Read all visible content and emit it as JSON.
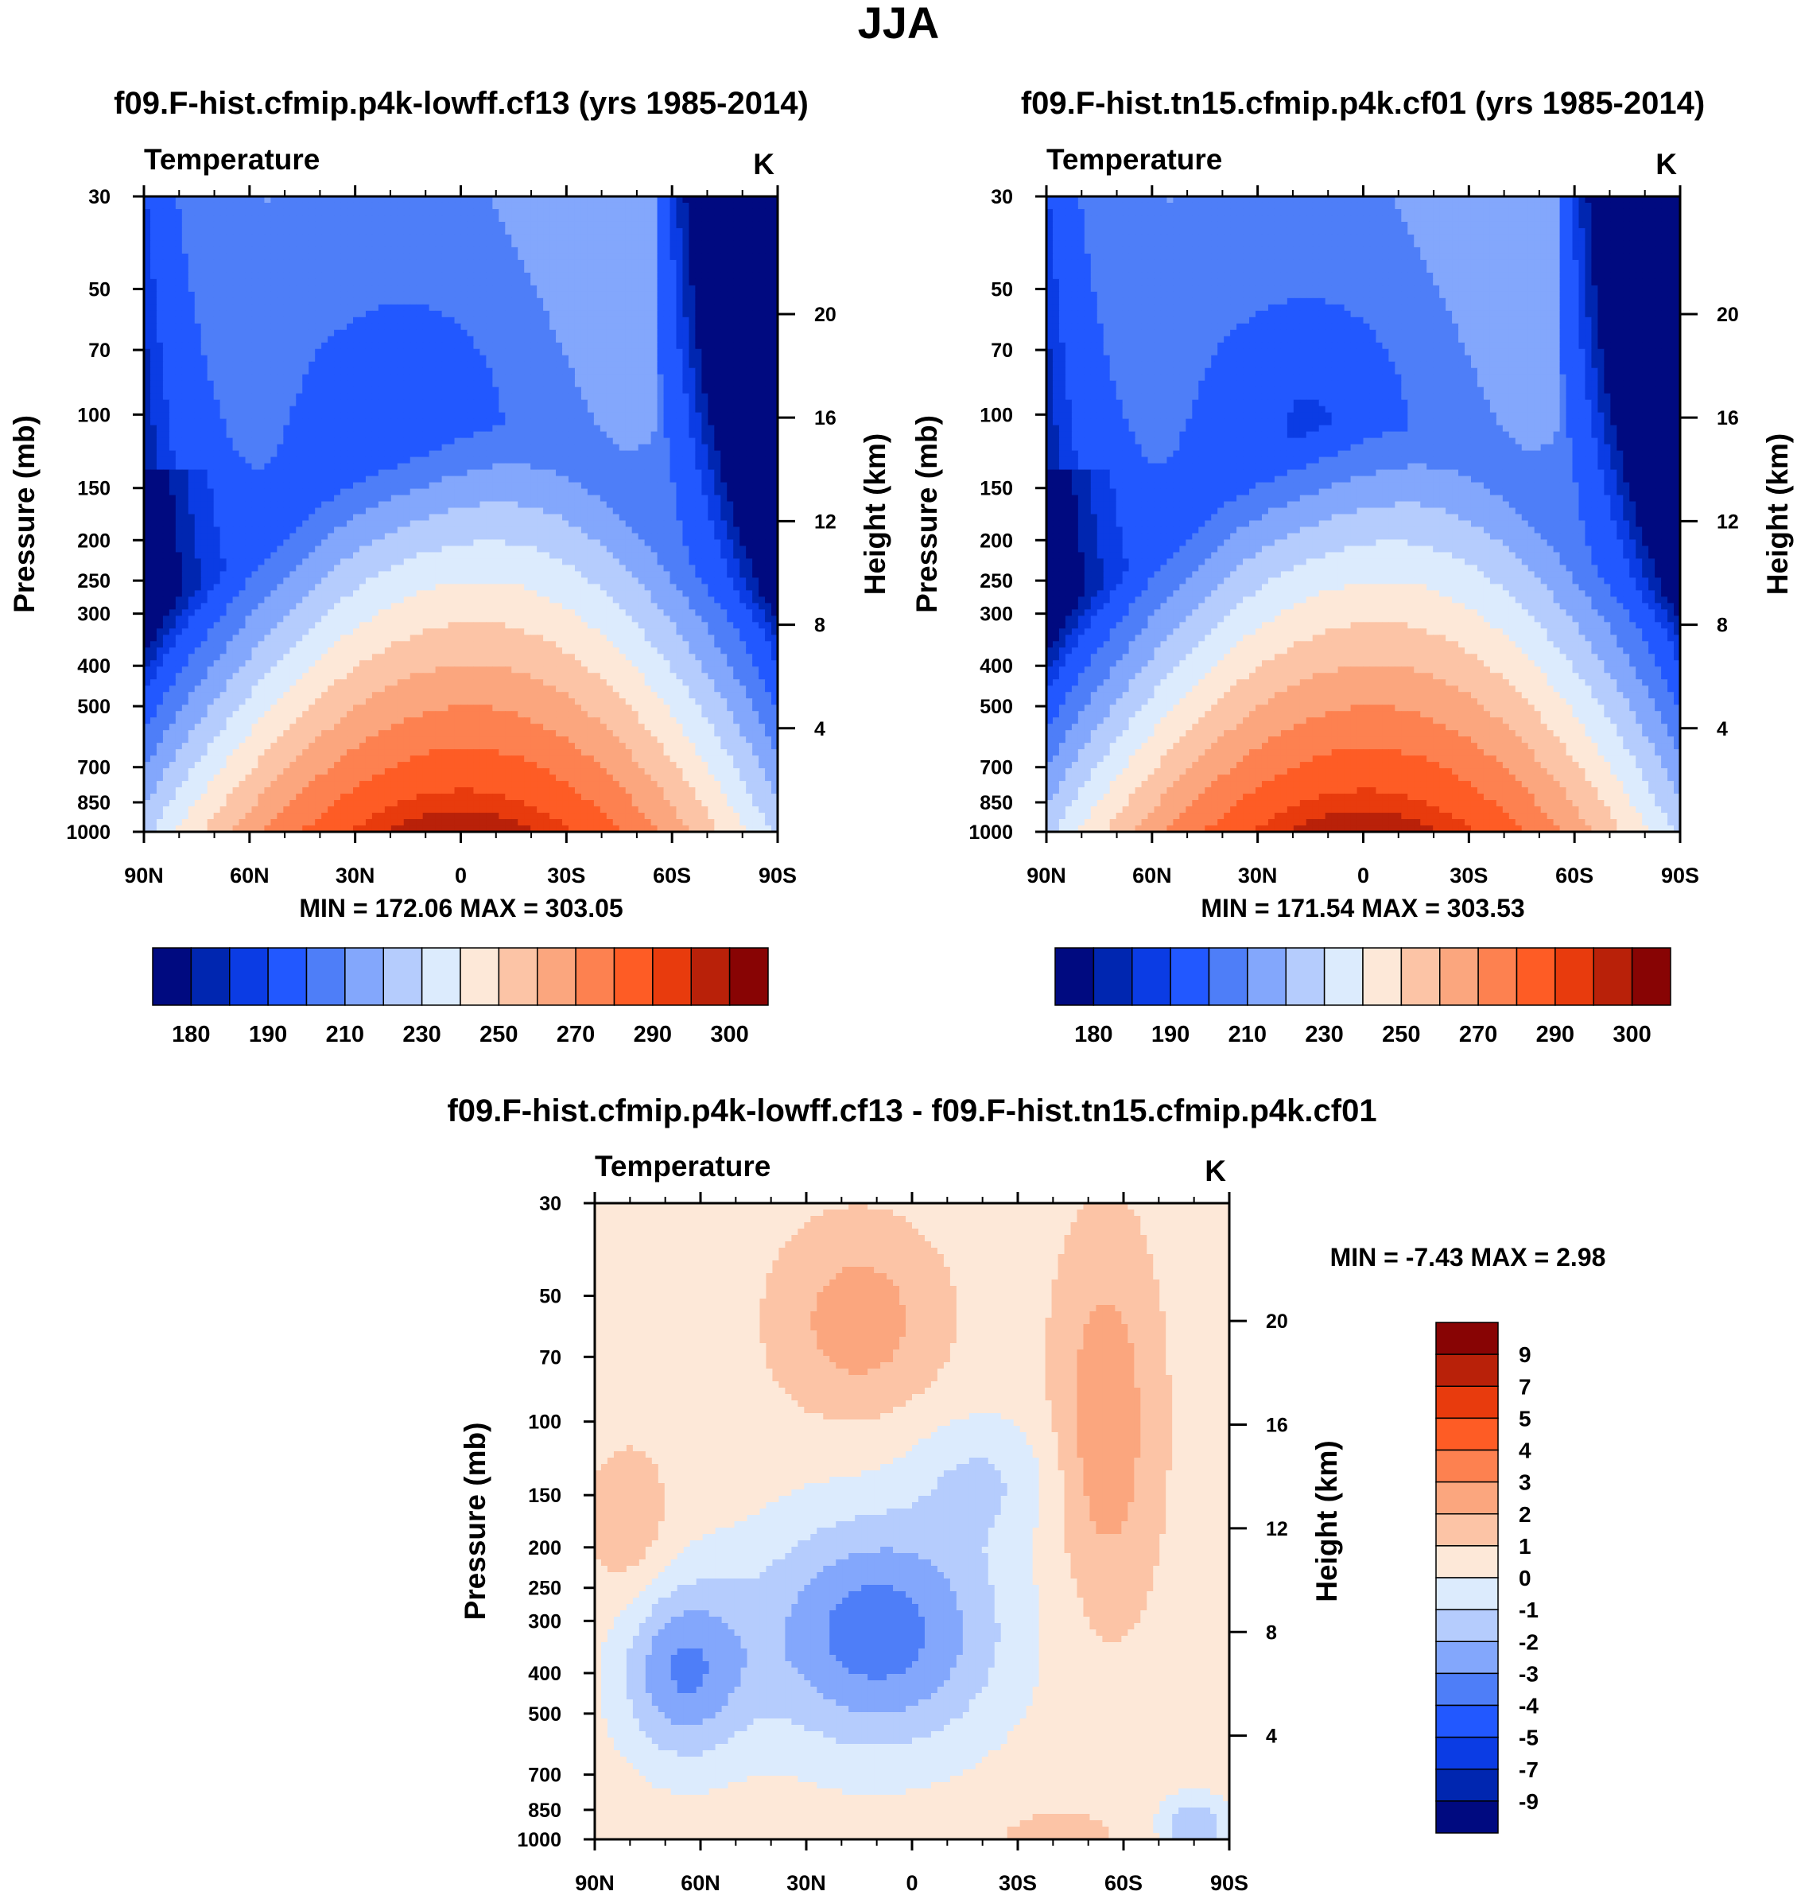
{
  "page": {
    "title": "JJA"
  },
  "chart_data": [
    {
      "id": "p1",
      "type": "contour",
      "title": "f09.F-hist.cfmip.p4k-lowff.cf13 (yrs 1985-2014)",
      "left_string": "Temperature",
      "right_string": "K",
      "ylabel": "Pressure (mb)",
      "ylabel_right": "Height (km)",
      "xticks": [
        "90N",
        "60N",
        "30N",
        "0",
        "30S",
        "60S",
        "90S"
      ],
      "yticks": [
        "30",
        "50",
        "70",
        "100",
        "150",
        "200",
        "250",
        "300",
        "400",
        "500",
        "700",
        "850",
        "1000"
      ],
      "height_ticks": [
        "20",
        "16",
        "12",
        "8",
        "4"
      ],
      "ylim": [
        1000,
        30
      ],
      "minmax": "MIN = 172.06  MAX = 303.05",
      "min": 172.06,
      "max": 303.05,
      "colorbar": {
        "labels": [
          "180",
          "190",
          "210",
          "230",
          "250",
          "270",
          "290",
          "300"
        ],
        "colors": [
          "#000a80",
          "#0026b0",
          "#0b3ce4",
          "#2258ff",
          "#4e7ef8",
          "#83a7fc",
          "#b5ccfd",
          "#dcebfd",
          "#fde8d8",
          "#fcc4a6",
          "#fba67e",
          "#fd8150",
          "#fe5c25",
          "#e83b0d",
          "#b92109",
          "#880404"
        ]
      }
    },
    {
      "id": "p2",
      "type": "contour",
      "title": "f09.F-hist.tn15.cfmip.p4k.cf01 (yrs 1985-2014)",
      "left_string": "Temperature",
      "right_string": "K",
      "ylabel": "Pressure (mb)",
      "ylabel_right": "Height (km)",
      "xticks": [
        "90N",
        "60N",
        "30N",
        "0",
        "30S",
        "60S",
        "90S"
      ],
      "yticks": [
        "30",
        "50",
        "70",
        "100",
        "150",
        "200",
        "250",
        "300",
        "400",
        "500",
        "700",
        "850",
        "1000"
      ],
      "height_ticks": [
        "20",
        "16",
        "12",
        "8",
        "4"
      ],
      "ylim": [
        1000,
        30
      ],
      "minmax": "MIN = 171.54  MAX = 303.53",
      "min": 171.54,
      "max": 303.53,
      "colorbar": {
        "labels": [
          "180",
          "190",
          "210",
          "230",
          "250",
          "270",
          "290",
          "300"
        ],
        "colors": [
          "#000a80",
          "#0026b0",
          "#0b3ce4",
          "#2258ff",
          "#4e7ef8",
          "#83a7fc",
          "#b5ccfd",
          "#dcebfd",
          "#fde8d8",
          "#fcc4a6",
          "#fba67e",
          "#fd8150",
          "#fe5c25",
          "#e83b0d",
          "#b92109",
          "#880404"
        ]
      }
    },
    {
      "id": "p3",
      "type": "contour",
      "title": "f09.F-hist.cfmip.p4k-lowff.cf13 - f09.F-hist.tn15.cfmip.p4k.cf01",
      "left_string": "Temperature",
      "right_string": "K",
      "ylabel": "Pressure (mb)",
      "ylabel_right": "Height (km)",
      "xticks": [
        "90N",
        "60N",
        "30N",
        "0",
        "30S",
        "60S",
        "90S"
      ],
      "yticks": [
        "30",
        "50",
        "70",
        "100",
        "150",
        "200",
        "250",
        "300",
        "400",
        "500",
        "700",
        "850",
        "1000"
      ],
      "height_ticks": [
        "20",
        "16",
        "12",
        "8",
        "4"
      ],
      "ylim": [
        1000,
        30
      ],
      "minmax": "MIN =  -7.43  MAX =   2.98",
      "min": -7.43,
      "max": 2.98,
      "colorbar": {
        "labels": [
          "9",
          "7",
          "5",
          "4",
          "3",
          "2",
          "1",
          "0",
          "-1",
          "-2",
          "-3",
          "-4",
          "-5",
          "-7",
          "-9"
        ],
        "colors": [
          "#880404",
          "#b92109",
          "#e83b0d",
          "#fe5c25",
          "#fd8150",
          "#fba67e",
          "#fcc4a6",
          "#fde8d8",
          "#dcebfd",
          "#b5ccfd",
          "#83a7fc",
          "#4e7ef8",
          "#2258ff",
          "#0b3ce4",
          "#0026b0",
          "#000a80"
        ]
      }
    }
  ]
}
